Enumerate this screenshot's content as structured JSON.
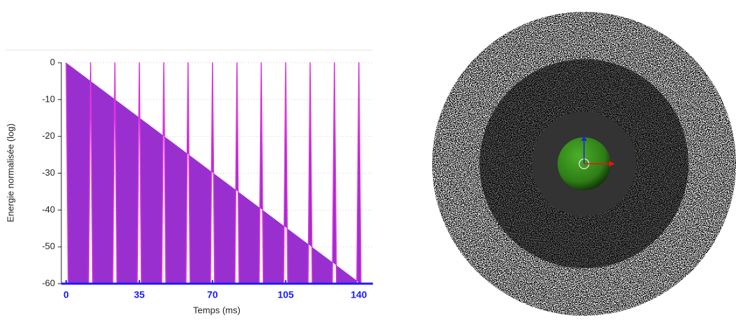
{
  "chart_data": {
    "type": "line",
    "y_label": "Energie normalisée (log)",
    "x_label": "Temps (ms)",
    "series": [
      {
        "color": "#dd33dd",
        "x": [
          0,
          1,
          10.7,
          11.7,
          12.7,
          22.3,
          23.3,
          24.3,
          34,
          35,
          36,
          45.7,
          46.7,
          47.7,
          57.3,
          58.3,
          59.3,
          69,
          70,
          71,
          80.7,
          81.7,
          82.7,
          92.3,
          93.3,
          94.3,
          104,
          105,
          106,
          115.7,
          116.7,
          117.7,
          127.3,
          128.3,
          129.3,
          139,
          140,
          141
        ],
        "values": [
          0,
          -60,
          -60,
          0,
          -60,
          -60,
          0,
          -60,
          -60,
          0,
          -60,
          -60,
          0,
          -60,
          -60,
          0,
          -60,
          -60,
          0,
          -60,
          -60,
          0,
          -60,
          -60,
          0,
          -60,
          -60,
          0,
          -60,
          -60,
          0,
          -60,
          -60,
          0,
          -60,
          -60,
          0,
          -60
        ]
      }
    ],
    "xlim": [
      -2.3,
      146.7
    ],
    "xticks": [
      0,
      35,
      70,
      105,
      140
    ],
    "ylim": [
      -60,
      0
    ],
    "yticks": [
      0,
      -10,
      -20,
      -30,
      -40,
      -50,
      -60
    ],
    "grid": true
  }
}
